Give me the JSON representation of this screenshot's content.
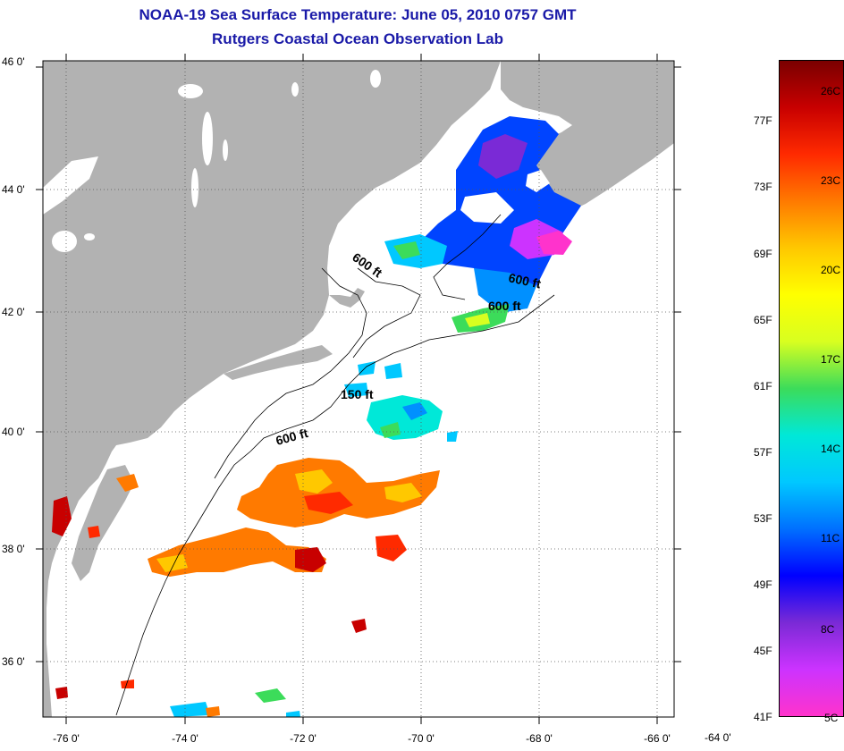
{
  "title_line1": "NOAA-19 Sea Surface Temperature:  June 05, 2010 0757 GMT",
  "title_line2": "Rutgers Coastal Ocean Observation Lab",
  "lat_ticks": [
    "46 0'",
    "44 0'",
    "42 0'",
    "40 0'",
    "38 0'",
    "36 0'"
  ],
  "lon_ticks": [
    "-76 0'",
    "-74 0'",
    "-72 0'",
    "-70 0'",
    "-68 0'",
    "-66 0'",
    "-64 0'"
  ],
  "contour_labels": [
    "600 ft",
    "600 ft",
    "600 ft",
    "150 ft",
    "600 ft"
  ],
  "colorbar": {
    "fahrenheit": [
      "77F",
      "73F",
      "69F",
      "65F",
      "61F",
      "57F",
      "53F",
      "49F",
      "45F",
      "41F"
    ],
    "celsius": [
      "26C",
      "23C",
      "20C",
      "17C",
      "14C",
      "11C",
      "8C",
      "5C"
    ],
    "colors": [
      "#ff33cc",
      "#cc33ff",
      "#7a2ad6",
      "#0000ff",
      "#0070ff",
      "#00c8ff",
      "#00e8d8",
      "#3cdc5a",
      "#d8ff20",
      "#ffff00",
      "#ffc800",
      "#ff7a00",
      "#ff2a00",
      "#c80000",
      "#7a0000"
    ]
  },
  "colors": {
    "land": "#b2b2b2",
    "ocean": "#ffffff",
    "title": "#1a1aa8"
  }
}
